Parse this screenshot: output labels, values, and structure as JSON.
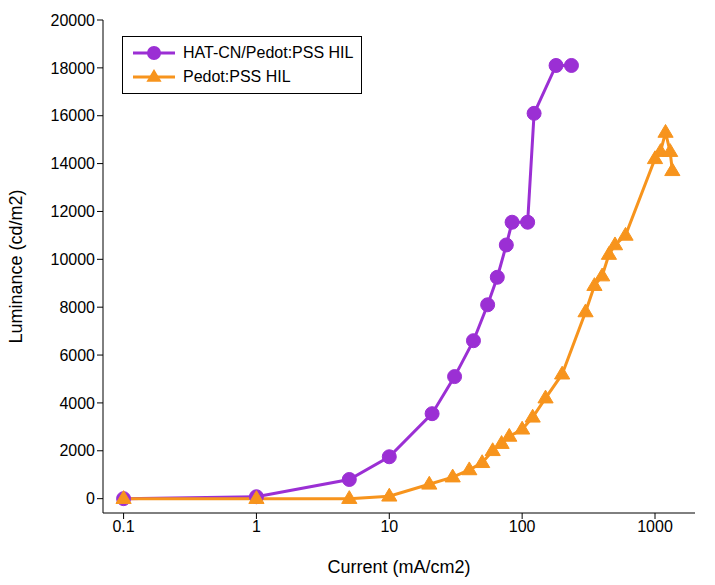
{
  "chart_data": {
    "type": "line",
    "x_label": "Current (mA/cm2)",
    "y_label": "Luminance (cd/m2)",
    "log": "x",
    "xlim": [
      0.07,
      2000
    ],
    "xticks": [
      0.1,
      1,
      10,
      100,
      1000
    ],
    "ylim": [
      -600,
      20000
    ],
    "yticks": [
      0,
      2000,
      4000,
      6000,
      8000,
      10000,
      12000,
      14000,
      16000,
      18000,
      20000
    ],
    "grid": false,
    "legend": "upper left",
    "series": [
      {
        "name": "HAT-CN/Pedot:PSS HIL",
        "color": "#9b2fd4",
        "marker": "circle",
        "x": [
          0.1,
          1,
          5,
          10,
          21,
          31,
          43,
          55,
          65,
          76,
          84,
          110,
          123,
          180,
          235
        ],
        "values": [
          0,
          80,
          800,
          1750,
          3550,
          5100,
          6600,
          8100,
          9250,
          10600,
          11550,
          11550,
          16100,
          18100,
          18100
        ]
      },
      {
        "name": "Pedot:PSS HIL",
        "color": "#f7941d",
        "marker": "triangle",
        "x": [
          0.1,
          1,
          5,
          10,
          20,
          30,
          40,
          50,
          60,
          70,
          80,
          100,
          120,
          150,
          200,
          300,
          350,
          400,
          450,
          500,
          600,
          1000,
          1100,
          1200,
          1300,
          1350
        ],
        "values": [
          0,
          0,
          0,
          100,
          600,
          900,
          1200,
          1500,
          2000,
          2300,
          2600,
          2900,
          3400,
          4200,
          5200,
          7800,
          8900,
          9300,
          10200,
          10600,
          11000,
          14200,
          14500,
          15300,
          14500,
          13700
        ]
      }
    ]
  }
}
